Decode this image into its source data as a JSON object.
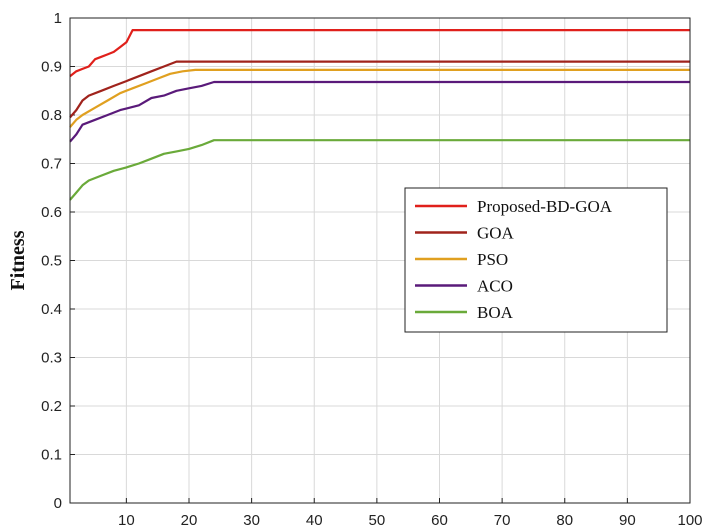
{
  "chart_data": {
    "type": "line",
    "title": "",
    "xlabel": "",
    "ylabel": "Fitness",
    "xlim": [
      1,
      100
    ],
    "ylim": [
      0,
      1
    ],
    "grid": true,
    "legend_position": "right-middle",
    "x_ticks": [
      10,
      20,
      30,
      40,
      50,
      60,
      70,
      80,
      90,
      100
    ],
    "y_ticks": [
      0,
      0.1,
      0.2,
      0.3,
      0.4,
      0.5,
      0.6,
      0.7,
      0.8,
      0.9,
      1
    ],
    "x_tick_labels": [
      "10",
      "20",
      "30",
      "40",
      "50",
      "60",
      "70",
      "80",
      "90",
      "100"
    ],
    "y_tick_labels": [
      "0",
      "0.1",
      "0.2",
      "0.3",
      "0.4",
      "0.5",
      "0.6",
      "0.7",
      "0.8",
      "0.9",
      "1"
    ],
    "series": [
      {
        "name": "Proposed-BD-GOA",
        "color": "#e0201b",
        "points": [
          [
            1,
            0.88
          ],
          [
            2,
            0.89
          ],
          [
            3,
            0.895
          ],
          [
            4,
            0.9
          ],
          [
            5,
            0.915
          ],
          [
            6,
            0.92
          ],
          [
            7,
            0.925
          ],
          [
            8,
            0.93
          ],
          [
            9,
            0.94
          ],
          [
            10,
            0.95
          ],
          [
            11,
            0.975
          ],
          [
            100,
            0.975
          ]
        ]
      },
      {
        "name": "GOA",
        "color": "#a0231c",
        "points": [
          [
            1,
            0.795
          ],
          [
            2,
            0.81
          ],
          [
            3,
            0.83
          ],
          [
            4,
            0.84
          ],
          [
            6,
            0.85
          ],
          [
            8,
            0.86
          ],
          [
            10,
            0.87
          ],
          [
            12,
            0.88
          ],
          [
            14,
            0.89
          ],
          [
            16,
            0.9
          ],
          [
            18,
            0.91
          ],
          [
            100,
            0.91
          ]
        ]
      },
      {
        "name": "PSO",
        "color": "#e0a020",
        "points": [
          [
            1,
            0.775
          ],
          [
            2,
            0.79
          ],
          [
            3,
            0.8
          ],
          [
            5,
            0.815
          ],
          [
            7,
            0.83
          ],
          [
            9,
            0.845
          ],
          [
            11,
            0.855
          ],
          [
            13,
            0.865
          ],
          [
            15,
            0.875
          ],
          [
            17,
            0.885
          ],
          [
            19,
            0.89
          ],
          [
            21,
            0.893
          ],
          [
            100,
            0.893
          ]
        ]
      },
      {
        "name": "ACO",
        "color": "#5a1a7a",
        "points": [
          [
            1,
            0.745
          ],
          [
            2,
            0.76
          ],
          [
            3,
            0.78
          ],
          [
            5,
            0.79
          ],
          [
            7,
            0.8
          ],
          [
            9,
            0.81
          ],
          [
            12,
            0.82
          ],
          [
            14,
            0.835
          ],
          [
            16,
            0.84
          ],
          [
            18,
            0.85
          ],
          [
            20,
            0.855
          ],
          [
            22,
            0.86
          ],
          [
            24,
            0.868
          ],
          [
            100,
            0.868
          ]
        ]
      },
      {
        "name": "BOA",
        "color": "#6aaa3a",
        "points": [
          [
            1,
            0.625
          ],
          [
            2,
            0.64
          ],
          [
            3,
            0.655
          ],
          [
            4,
            0.665
          ],
          [
            6,
            0.675
          ],
          [
            8,
            0.685
          ],
          [
            10,
            0.692
          ],
          [
            12,
            0.7
          ],
          [
            14,
            0.71
          ],
          [
            16,
            0.72
          ],
          [
            18,
            0.725
          ],
          [
            20,
            0.73
          ],
          [
            22,
            0.738
          ],
          [
            24,
            0.748
          ],
          [
            100,
            0.748
          ]
        ]
      }
    ]
  }
}
